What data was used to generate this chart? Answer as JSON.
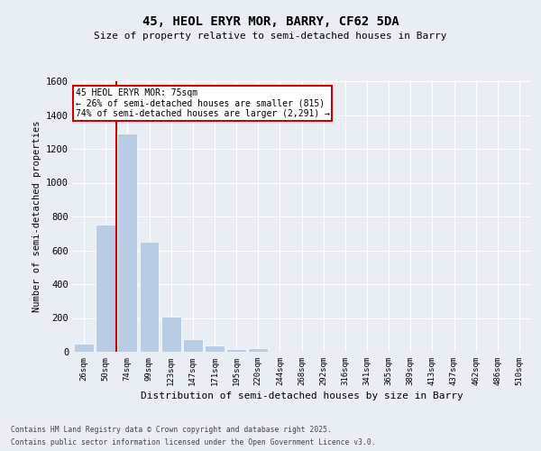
{
  "title": "45, HEOL ERYR MOR, BARRY, CF62 5DA",
  "subtitle": "Size of property relative to semi-detached houses in Barry",
  "xlabel": "Distribution of semi-detached houses by size in Barry",
  "ylabel": "Number of semi-detached properties",
  "categories": [
    "26sqm",
    "50sqm",
    "74sqm",
    "99sqm",
    "123sqm",
    "147sqm",
    "171sqm",
    "195sqm",
    "220sqm",
    "244sqm",
    "268sqm",
    "292sqm",
    "316sqm",
    "341sqm",
    "365sqm",
    "389sqm",
    "413sqm",
    "437sqm",
    "462sqm",
    "486sqm",
    "510sqm"
  ],
  "values": [
    50,
    750,
    1290,
    650,
    210,
    75,
    35,
    15,
    20,
    0,
    0,
    0,
    0,
    0,
    0,
    0,
    0,
    0,
    0,
    0,
    0
  ],
  "bar_color": "#b8cce4",
  "bar_edge_color": "#ffffff",
  "background_color": "#e8eef4",
  "plot_bg_color": "#e8eef4",
  "grid_color": "#ffffff",
  "annotation_text": "45 HEOL ERYR MOR: 75sqm\n← 26% of semi-detached houses are smaller (815)\n74% of semi-detached houses are larger (2,291) →",
  "annotation_box_color": "#ffffff",
  "annotation_border_color": "#cc0000",
  "ylim": [
    0,
    1600
  ],
  "yticks": [
    0,
    200,
    400,
    600,
    800,
    1000,
    1200,
    1400,
    1600
  ],
  "footer_line1": "Contains HM Land Registry data © Crown copyright and database right 2025.",
  "footer_line2": "Contains public sector information licensed under the Open Government Licence v3.0."
}
